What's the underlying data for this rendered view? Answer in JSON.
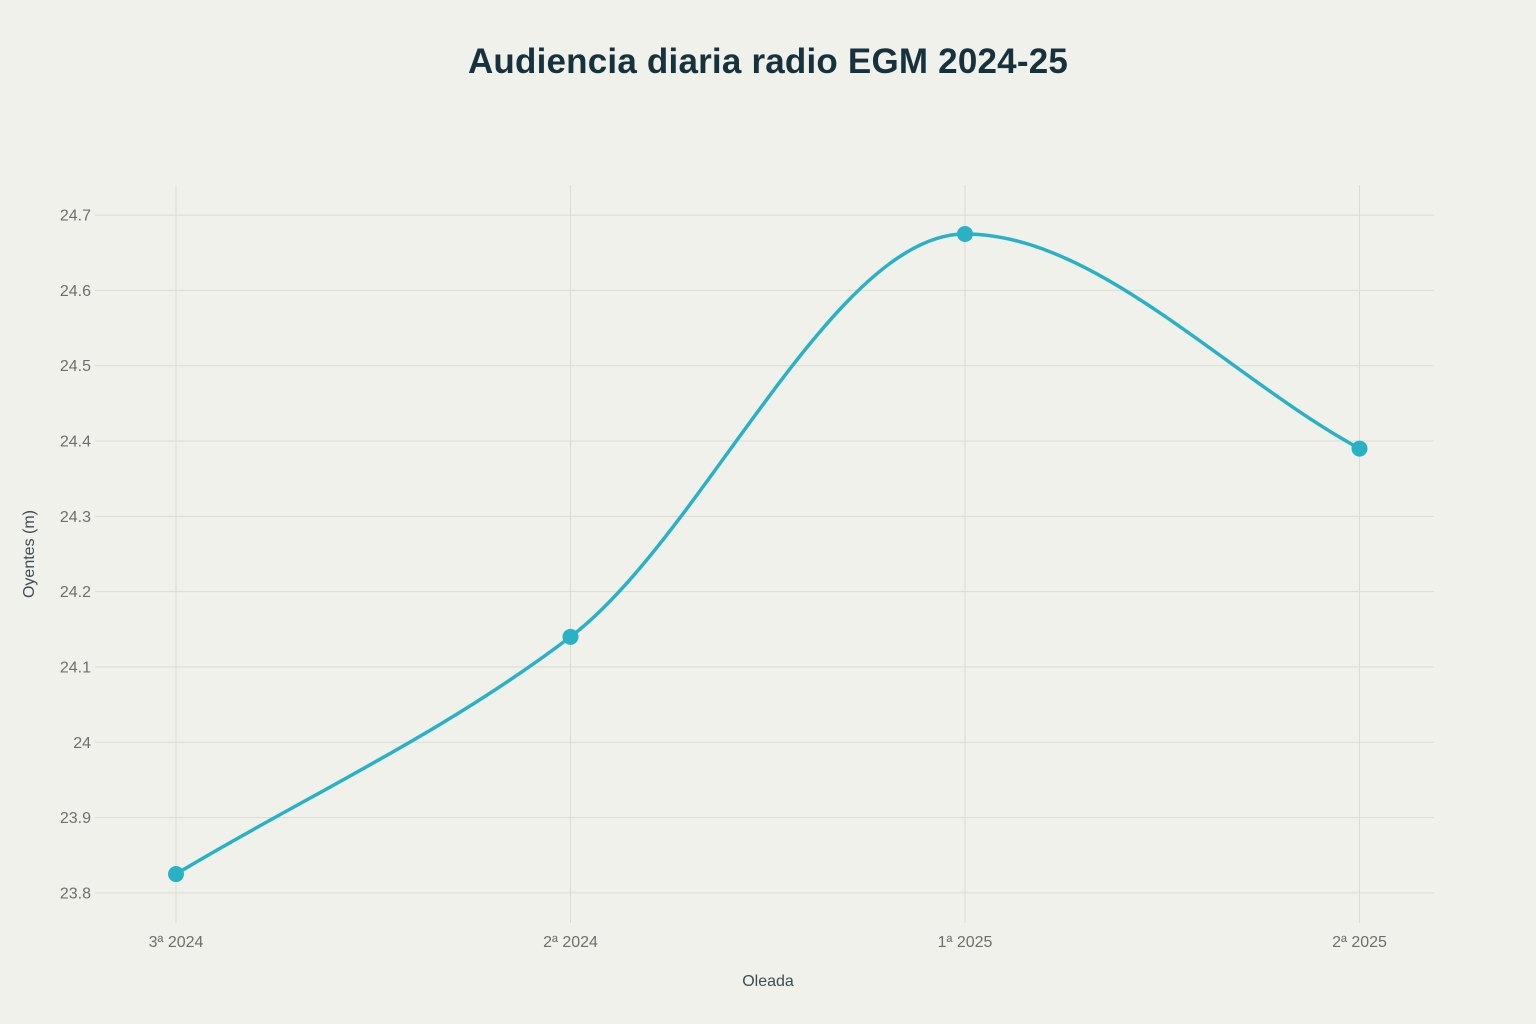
{
  "page": {
    "background_color": "#f1f1ec"
  },
  "chart_data": {
    "type": "line",
    "title": "Audiencia diaria radio EGM 2024-25",
    "xlabel": "Oleada",
    "ylabel": "Oyentes (m)",
    "categories": [
      "3ª 2024",
      "2ª 2024",
      "1ª 2025",
      "2ª 2025"
    ],
    "values": [
      23.825,
      24.14,
      24.675,
      24.39
    ],
    "y_ticks": [
      23.8,
      23.9,
      24,
      24.1,
      24.2,
      24.3,
      24.4,
      24.5,
      24.6,
      24.7
    ],
    "y_tick_labels": [
      "23.8",
      "23.9",
      "24",
      "24.1",
      "24.2",
      "24.3",
      "24.4",
      "24.5",
      "24.6",
      "24.7"
    ],
    "ylim": [
      23.76,
      24.74
    ],
    "grid": true,
    "legend": "none",
    "curve": "monotone",
    "colors": {
      "line": "#29b2c6",
      "point": "#29b2c6",
      "grid": "#dcdbd3",
      "title": "#16323d",
      "tick_label": "#6e6e6e",
      "axis_title": "#3e4b52",
      "background": "#f1f1ec"
    }
  }
}
